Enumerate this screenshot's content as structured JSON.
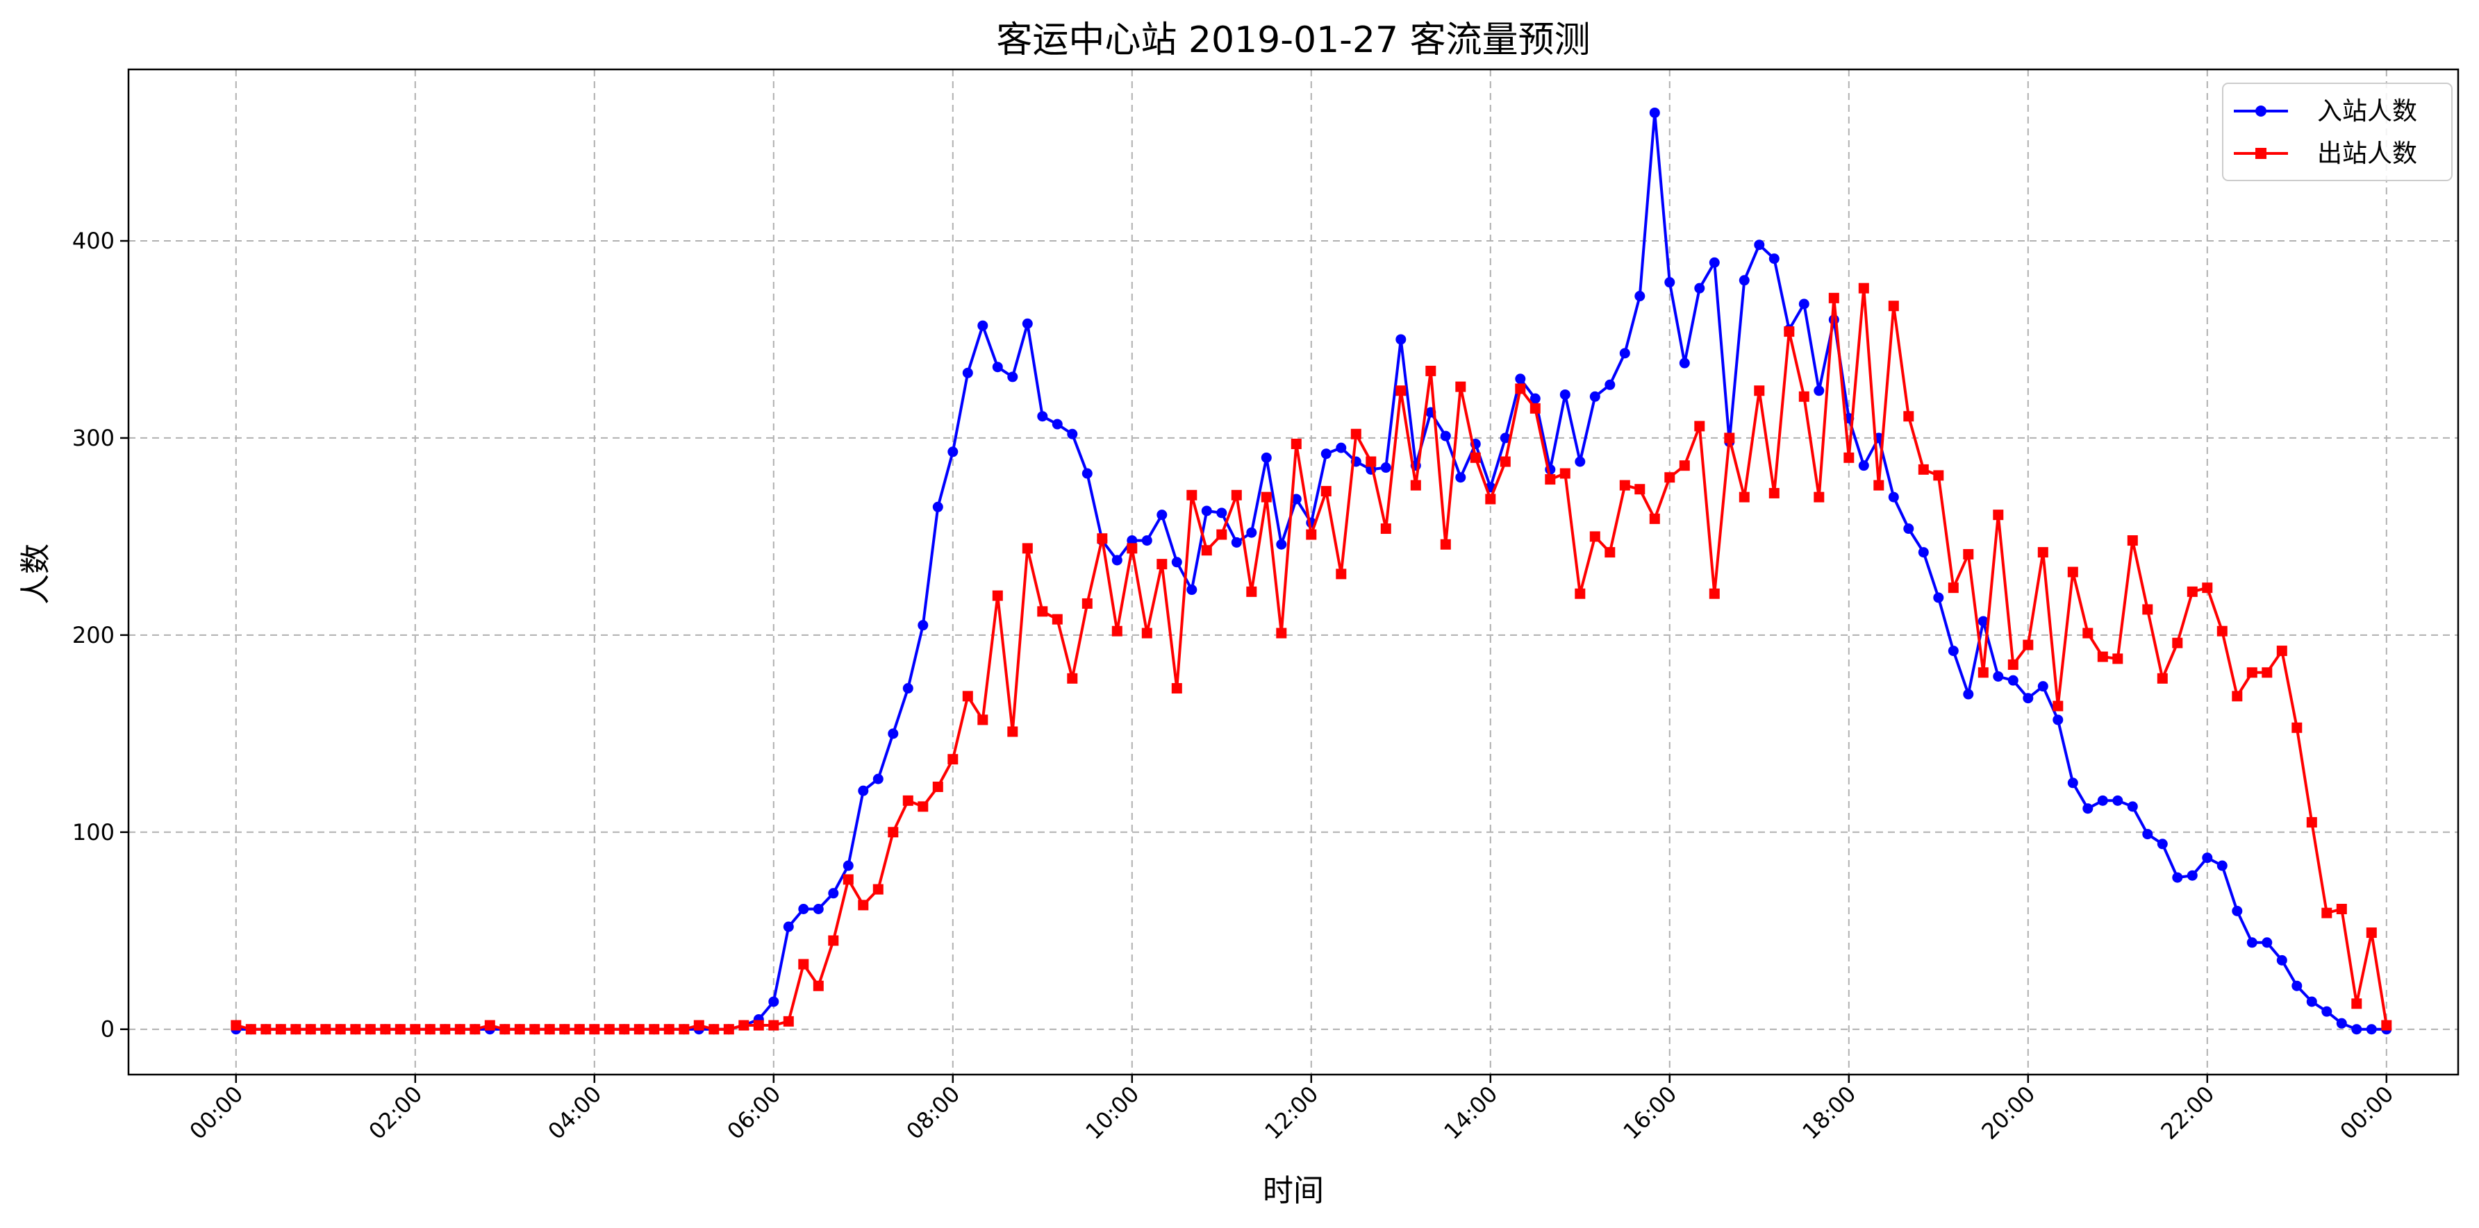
{
  "chart_data": {
    "type": "line",
    "title": "客运中心站 2019-01-27 客流量预测",
    "xlabel": "时间",
    "ylabel": "人数",
    "x_unit": "hour of day",
    "x_interval_minutes": 10,
    "x_range_hours": [
      -1.2,
      24.8
    ],
    "ylim": [
      -23,
      487
    ],
    "grid": true,
    "legend_position": "top-right",
    "x_ticks": [
      "00:00",
      "02:00",
      "04:00",
      "06:00",
      "08:00",
      "10:00",
      "12:00",
      "14:00",
      "16:00",
      "18:00",
      "20:00",
      "22:00",
      "00:00"
    ],
    "y_ticks": [
      0,
      100,
      200,
      300,
      400
    ],
    "series": [
      {
        "name": "入站人数",
        "color": "#0000ff",
        "marker": "circle",
        "values": [
          0,
          0,
          0,
          0,
          0,
          0,
          0,
          0,
          0,
          0,
          0,
          0,
          0,
          0,
          0,
          0,
          0,
          0,
          0,
          0,
          0,
          0,
          0,
          0,
          0,
          0,
          0,
          0,
          0,
          0,
          0,
          0,
          0,
          0,
          2,
          5,
          14,
          52,
          61,
          61,
          69,
          83,
          121,
          127,
          150,
          173,
          205,
          265,
          293,
          333,
          357,
          336,
          331,
          358,
          311,
          307,
          302,
          282,
          248,
          238,
          248,
          248,
          261,
          237,
          223,
          263,
          262,
          247,
          252,
          290,
          246,
          269,
          257,
          292,
          295,
          288,
          284,
          285,
          350,
          286,
          313,
          301,
          280,
          297,
          275,
          300,
          330,
          320,
          284,
          322,
          288,
          321,
          327,
          343,
          372,
          465,
          379,
          338,
          376,
          389,
          298,
          380,
          398,
          391,
          355,
          368,
          324,
          360,
          310,
          286,
          300,
          270,
          254,
          242,
          219,
          192,
          170,
          207,
          179,
          177,
          168,
          174,
          157,
          125,
          112,
          116,
          116,
          113,
          99,
          94,
          77,
          78,
          87,
          83,
          60,
          44,
          44,
          35,
          22,
          14,
          9,
          3,
          0,
          0,
          0
        ]
      },
      {
        "name": "出站人数",
        "color": "#ff0000",
        "marker": "square",
        "values": [
          2,
          0,
          0,
          0,
          0,
          0,
          0,
          0,
          0,
          0,
          0,
          0,
          0,
          0,
          0,
          0,
          0,
          2,
          0,
          0,
          0,
          0,
          0,
          0,
          0,
          0,
          0,
          0,
          0,
          0,
          0,
          2,
          0,
          0,
          2,
          2,
          2,
          4,
          33,
          22,
          45,
          76,
          63,
          71,
          100,
          116,
          113,
          123,
          137,
          169,
          157,
          220,
          151,
          244,
          212,
          208,
          178,
          216,
          249,
          202,
          244,
          201,
          236,
          173,
          271,
          243,
          251,
          271,
          222,
          270,
          201,
          297,
          251,
          273,
          231,
          302,
          288,
          254,
          324,
          276,
          334,
          246,
          326,
          290,
          269,
          288,
          325,
          315,
          279,
          282,
          221,
          250,
          242,
          276,
          274,
          259,
          280,
          286,
          306,
          221,
          300,
          270,
          324,
          272,
          354,
          321,
          270,
          371,
          290,
          376,
          276,
          367,
          311,
          284,
          281,
          224,
          241,
          181,
          261,
          185,
          195,
          242,
          164,
          232,
          201,
          189,
          188,
          248,
          213,
          178,
          196,
          222,
          224,
          202,
          169,
          181,
          181,
          192,
          153,
          105,
          59,
          61,
          13,
          49,
          2
        ]
      }
    ]
  }
}
